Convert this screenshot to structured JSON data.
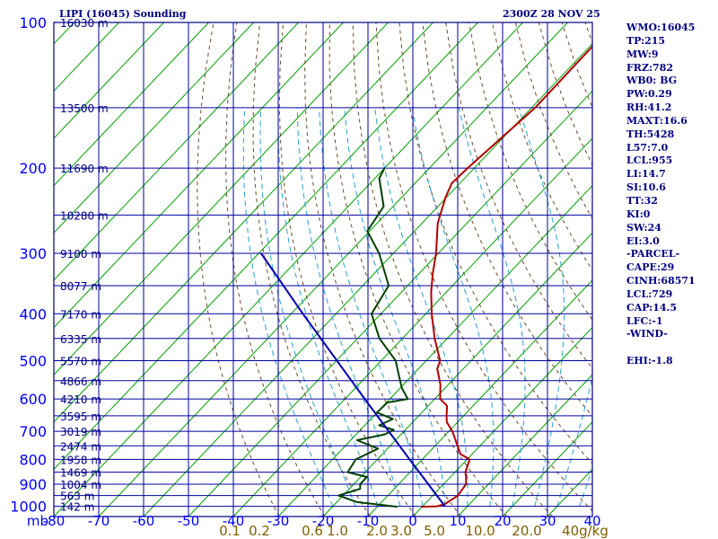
{
  "header": {
    "station": "LIPI (16045) Sounding",
    "time": "2300Z 28 NOV 25"
  },
  "indices": [
    "WMO:16045",
    "TP:215",
    "MW:9",
    "FRZ:782",
    "WB0: BG",
    "PW:0.29",
    "RH:41.2",
    "MAXT:16.6",
    "TH:5428",
    "L57:7.0",
    "LCL:955",
    "LI:14.7",
    "SI:10.6",
    "TT:32",
    "KI:0",
    "SW:24",
    "EI:3.0",
    "-PARCEL-",
    "CAPE:29",
    "CINH:68571",
    "LCL:729",
    "CAP:14.5",
    "LFC:-1",
    "-WIND-",
    "",
    "EHI:-1.8"
  ],
  "colors": {
    "frame": "#000080",
    "grid": "#0000a0",
    "isotherm": "#00a000",
    "dry_adiabat": "#6b4a2a",
    "moist_adiabat": "#2aa0d0",
    "temperature": "#b00000",
    "dewpoint": "#004000",
    "parcel": "#0000b0",
    "axis_label": "#0000ff",
    "mixing_label": "#806000"
  },
  "chart_data": {
    "type": "line",
    "title": "LIPI (16045) Sounding",
    "subtitle": "2300Z 28 NOV 25",
    "y_scale": "log pressure",
    "ylim": [
      1050,
      100
    ],
    "xlim": [
      -80,
      40
    ],
    "y_ticks": [
      "100",
      "200",
      "300",
      "400",
      "500",
      "600",
      "700",
      "800",
      "900",
      "1000"
    ],
    "x_axis_unit_label": "mb",
    "x_ticks": [
      "-80",
      "-70",
      "-60",
      "-50",
      "-40",
      "-30",
      "-20",
      "-10",
      "0",
      "10",
      "20",
      "30",
      "40"
    ],
    "mixing_ratio_labels": [
      "0.1",
      "0.2",
      "0.6",
      "1.0",
      "2.0",
      "3.0",
      "5.0",
      "10.0",
      "20.0",
      "40g/kg"
    ],
    "height_labels": [
      {
        "p": 100,
        "label": "16030 m"
      },
      {
        "p": 150,
        "label": "13500 m"
      },
      {
        "p": 200,
        "label": "11690 m"
      },
      {
        "p": 250,
        "label": "10280 m"
      },
      {
        "p": 300,
        "label": "9100 m"
      },
      {
        "p": 350,
        "label": "8077 m"
      },
      {
        "p": 400,
        "label": "7170 m"
      },
      {
        "p": 450,
        "label": "6335 m"
      },
      {
        "p": 500,
        "label": "5570 m"
      },
      {
        "p": 550,
        "label": "4866 m"
      },
      {
        "p": 600,
        "label": "4210 m"
      },
      {
        "p": 650,
        "label": "3595 m"
      },
      {
        "p": 700,
        "label": "3019 m"
      },
      {
        "p": 750,
        "label": "2474 m"
      },
      {
        "p": 800,
        "label": "1958 m"
      },
      {
        "p": 850,
        "label": "1469 m"
      },
      {
        "p": 900,
        "label": "1004 m"
      },
      {
        "p": 950,
        "label": "563 m"
      },
      {
        "p": 1000,
        "label": "142 m"
      }
    ],
    "series": [
      {
        "name": "temperature",
        "points": [
          [
            1002,
            -0.2
          ],
          [
            1000,
            3.2
          ],
          [
            990,
            4.5
          ],
          [
            950,
            5.6
          ],
          [
            900,
            5.0
          ],
          [
            870,
            3.5
          ],
          [
            850,
            2.3
          ],
          [
            800,
            0.6
          ],
          [
            780,
            -2.6
          ],
          [
            750,
            -5.0
          ],
          [
            700,
            -9.2
          ],
          [
            670,
            -12.4
          ],
          [
            650,
            -13.8
          ],
          [
            620,
            -15.8
          ],
          [
            600,
            -18.8
          ],
          [
            560,
            -21.8
          ],
          [
            520,
            -25.8
          ],
          [
            500,
            -26.9
          ],
          [
            450,
            -32.8
          ],
          [
            400,
            -38.7
          ],
          [
            360,
            -43.5
          ],
          [
            330,
            -47.0
          ],
          [
            300,
            -50.5
          ],
          [
            260,
            -56.5
          ],
          [
            230,
            -60.2
          ],
          [
            215,
            -61.8
          ],
          [
            200,
            -61.5
          ],
          [
            150,
            -59.2
          ],
          [
            100,
            -59.5
          ]
        ]
      },
      {
        "name": "dewpoint",
        "points": [
          [
            1002,
            -5.5
          ],
          [
            980,
            -15.5
          ],
          [
            950,
            -21.0
          ],
          [
            920,
            -17.6
          ],
          [
            900,
            -18.6
          ],
          [
            870,
            -18.6
          ],
          [
            850,
            -23.9
          ],
          [
            800,
            -24.8
          ],
          [
            760,
            -22.1
          ],
          [
            730,
            -28.6
          ],
          [
            710,
            -23.6
          ],
          [
            695,
            -22.6
          ],
          [
            680,
            -26.8
          ],
          [
            660,
            -25.1
          ],
          [
            640,
            -30.0
          ],
          [
            610,
            -29.8
          ],
          [
            600,
            -26.0
          ],
          [
            570,
            -29.6
          ],
          [
            540,
            -32.6
          ],
          [
            500,
            -36.8
          ],
          [
            450,
            -45.1
          ],
          [
            400,
            -52.1
          ],
          [
            350,
            -54.2
          ],
          [
            300,
            -63.2
          ],
          [
            270,
            -70.5
          ],
          [
            240,
            -72.1
          ],
          [
            210,
            -79.0
          ],
          [
            200,
            -80.0
          ]
        ]
      },
      {
        "name": "parcel",
        "points": [
          [
            1000,
            5.0
          ],
          [
            800,
            -12.8
          ],
          [
            600,
            -35.6
          ],
          [
            400,
            -67.4
          ],
          [
            300,
            -89.5
          ]
        ]
      }
    ],
    "grid": true,
    "legend": "none"
  }
}
